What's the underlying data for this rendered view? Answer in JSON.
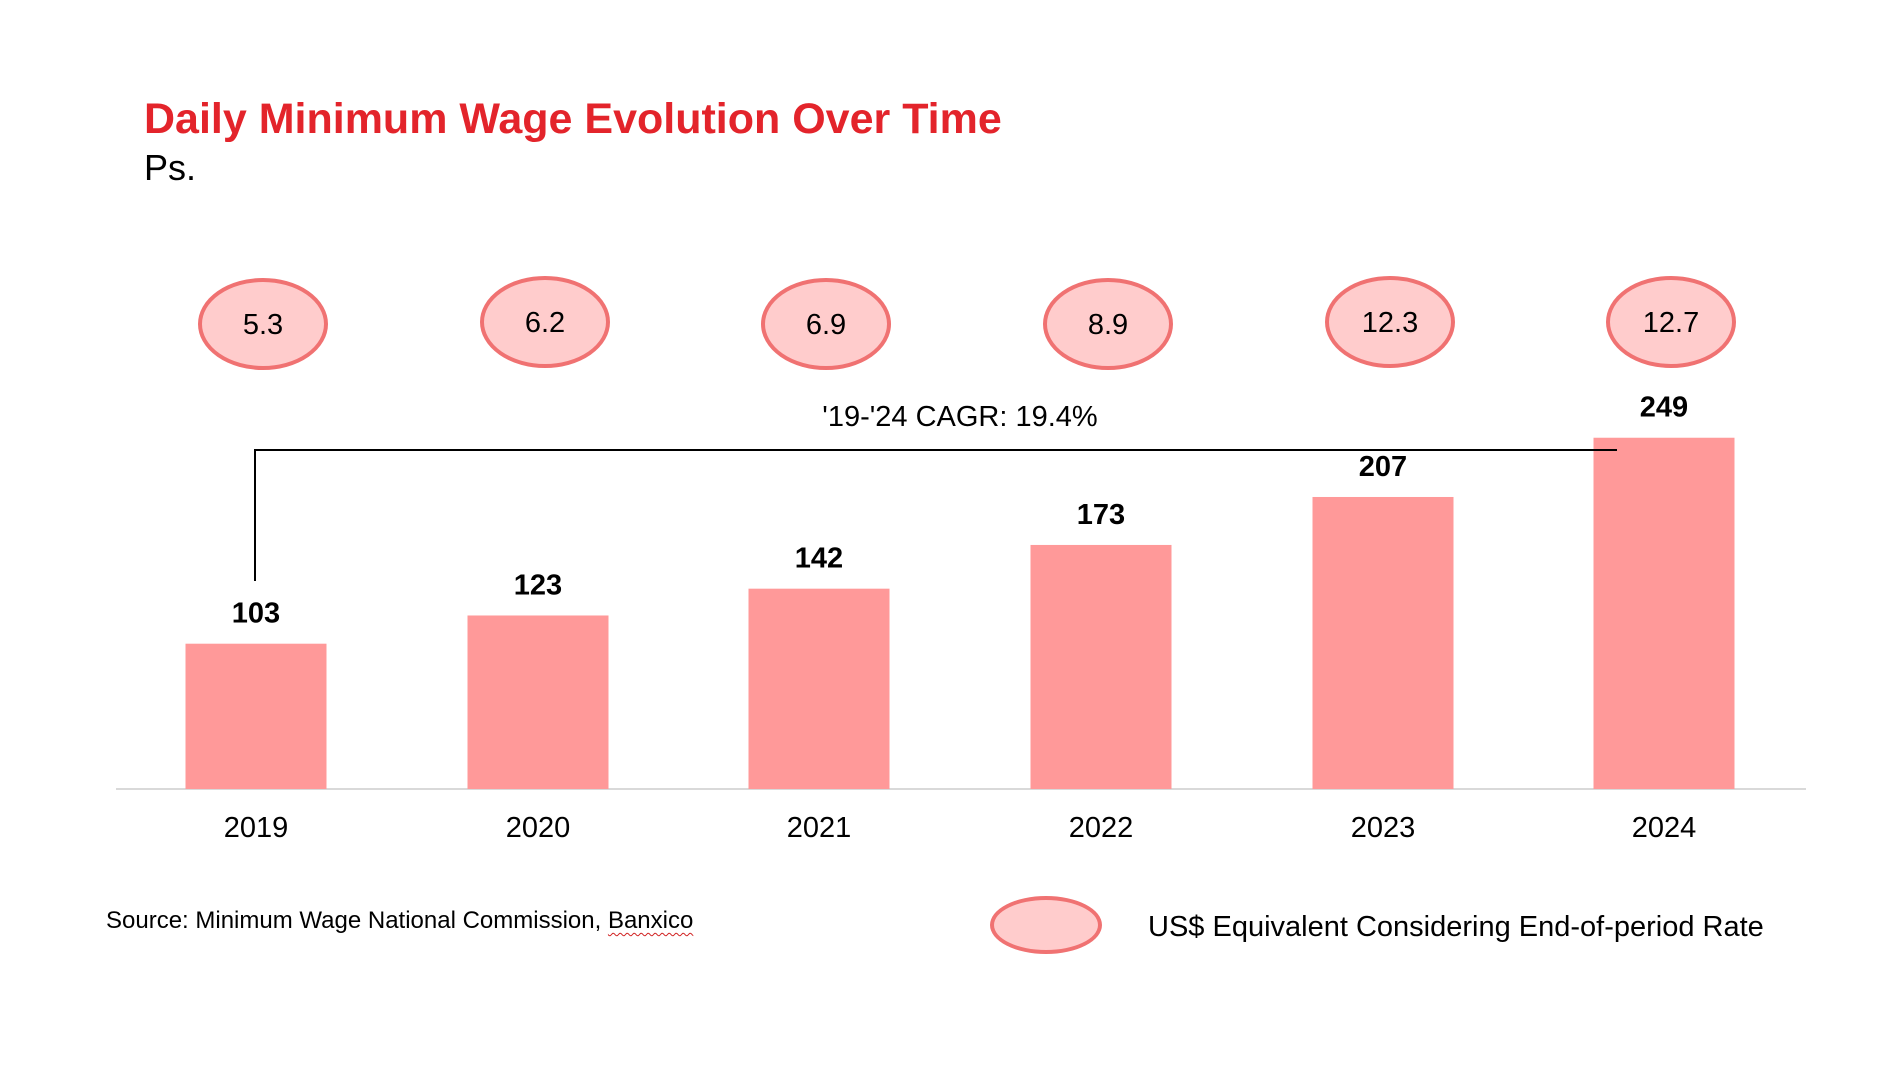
{
  "chart_data": {
    "type": "bar",
    "title": "Daily Minimum Wage Evolution Over Time",
    "subtitle": "Ps.",
    "categories": [
      "2019",
      "2020",
      "2021",
      "2022",
      "2023",
      "2024"
    ],
    "values": [
      103,
      123,
      142,
      173,
      207,
      249
    ],
    "ylim": [
      0,
      280
    ],
    "usd_equivalent": [
      "5.3",
      "6.2",
      "6.9",
      "8.9",
      "12.3",
      "12.7"
    ],
    "cagr_annotation": "'19-'24 CAGR: 19.4%",
    "legend": "US$ Equivalent Considering End-of-period Rate",
    "grid": false
  },
  "source": {
    "prefix": "Source: Minimum Wage National Commission, ",
    "underlined": "Banxico"
  },
  "colors": {
    "title": "#e3242b",
    "bar": "#ff9999",
    "oval_fill": "#ffcccc",
    "oval_stroke": "#f07272",
    "axis": "#d9d9d9",
    "bracket": "#000000"
  }
}
